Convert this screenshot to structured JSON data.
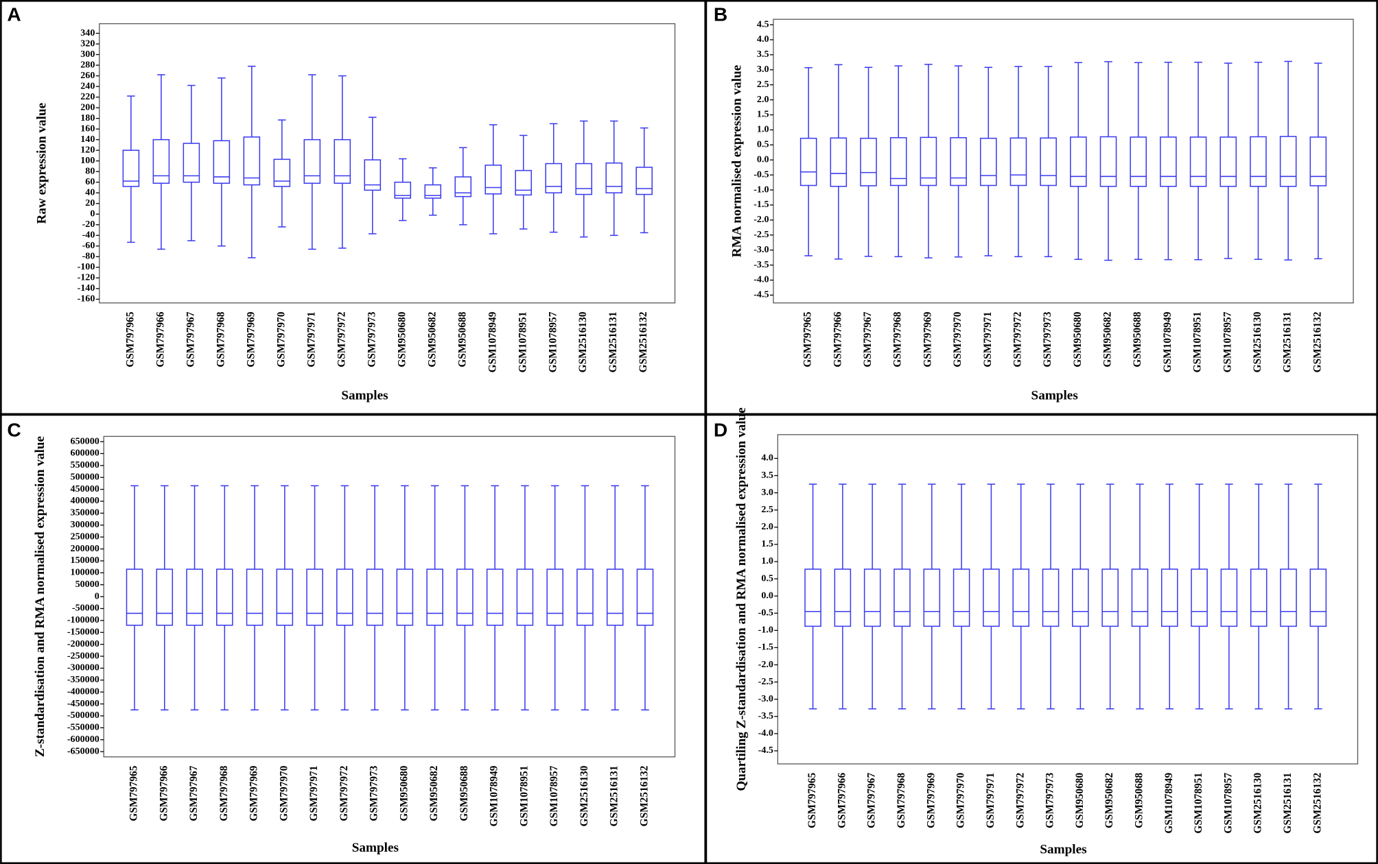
{
  "chart_data": [
    {
      "type": "box",
      "panel": "A",
      "ylabel": "Raw expression value",
      "xlabel": "Samples",
      "color": "#3b3bf0",
      "categories": [
        "GSM797965",
        "GSM797966",
        "GSM797967",
        "GSM797968",
        "GSM797969",
        "GSM797970",
        "GSM797971",
        "GSM797972",
        "GSM797973",
        "GSM950680",
        "GSM950682",
        "GSM950688",
        "GSM1078949",
        "GSM1078951",
        "GSM1078957",
        "GSM2516130",
        "GSM2516131",
        "GSM2516132"
      ],
      "min": [
        -53,
        -66,
        -50,
        -60,
        -82,
        -24,
        -66,
        -64,
        -37,
        -12,
        -2,
        -20,
        -37,
        -28,
        -34,
        -43,
        -40,
        -35
      ],
      "q1": [
        52,
        58,
        60,
        58,
        55,
        52,
        58,
        58,
        45,
        30,
        30,
        33,
        38,
        36,
        40,
        37,
        40,
        37
      ],
      "median": [
        62,
        72,
        72,
        70,
        68,
        62,
        72,
        72,
        55,
        35,
        35,
        40,
        50,
        45,
        52,
        48,
        52,
        48
      ],
      "q3": [
        120,
        140,
        133,
        138,
        145,
        103,
        140,
        140,
        102,
        60,
        55,
        70,
        92,
        82,
        95,
        95,
        96,
        88
      ],
      "max": [
        222,
        262,
        242,
        256,
        278,
        177,
        262,
        260,
        182,
        104,
        87,
        125,
        168,
        148,
        170,
        175,
        175,
        162
      ],
      "ylim": [
        -167,
        358
      ],
      "yticks": [
        -160,
        -140,
        -120,
        -100,
        -80,
        -60,
        -40,
        -20,
        0,
        20,
        40,
        60,
        80,
        100,
        120,
        140,
        160,
        180,
        200,
        220,
        240,
        260,
        280,
        300,
        320,
        340
      ]
    },
    {
      "type": "box",
      "panel": "B",
      "ylabel": "RMA normalised expression value",
      "xlabel": "Samples",
      "color": "#3b3bf0",
      "categories": [
        "GSM797965",
        "GSM797966",
        "GSM797967",
        "GSM797968",
        "GSM797969",
        "GSM797970",
        "GSM797971",
        "GSM797972",
        "GSM797973",
        "GSM950680",
        "GSM950682",
        "GSM950688",
        "GSM1078949",
        "GSM1078951",
        "GSM1078957",
        "GSM2516130",
        "GSM2516131",
        "GSM2516132"
      ],
      "min": [
        -3.19,
        -3.3,
        -3.21,
        -3.22,
        -3.26,
        -3.23,
        -3.19,
        -3.22,
        -3.22,
        -3.31,
        -3.34,
        -3.31,
        -3.32,
        -3.32,
        -3.28,
        -3.31,
        -3.33,
        -3.29
      ],
      "q1": [
        -0.85,
        -0.88,
        -0.86,
        -0.85,
        -0.85,
        -0.85,
        -0.85,
        -0.85,
        -0.85,
        -0.88,
        -0.88,
        -0.88,
        -0.88,
        -0.88,
        -0.88,
        -0.88,
        -0.88,
        -0.86
      ],
      "median": [
        -0.4,
        -0.45,
        -0.42,
        -0.62,
        -0.6,
        -0.6,
        -0.52,
        -0.5,
        -0.52,
        -0.55,
        -0.55,
        -0.55,
        -0.55,
        -0.55,
        -0.55,
        -0.55,
        -0.55,
        -0.55
      ],
      "q3": [
        0.72,
        0.73,
        0.72,
        0.74,
        0.75,
        0.74,
        0.72,
        0.73,
        0.73,
        0.76,
        0.77,
        0.76,
        0.76,
        0.76,
        0.76,
        0.77,
        0.78,
        0.76
      ],
      "max": [
        3.07,
        3.17,
        3.08,
        3.13,
        3.18,
        3.13,
        3.08,
        3.11,
        3.11,
        3.24,
        3.27,
        3.24,
        3.25,
        3.25,
        3.22,
        3.25,
        3.28,
        3.22
      ],
      "ylim": [
        -4.76,
        4.68
      ],
      "yticks": [
        {
          "value": -4.5,
          "label": "-4.5"
        },
        {
          "value": -4,
          "label": "-4.0"
        },
        {
          "value": -3.5,
          "label": "-3.5"
        },
        {
          "value": -3,
          "label": "-3.0"
        },
        {
          "value": -2.5,
          "label": "-2.5"
        },
        {
          "value": -2,
          "label": "-2.0"
        },
        {
          "value": -1.5,
          "label": "-1.5"
        },
        {
          "value": -1,
          "label": "-1.0"
        },
        {
          "value": -0.5,
          "label": "-0.5"
        },
        {
          "value": 0,
          "label": "0.0"
        },
        {
          "value": 0.5,
          "label": "0.5"
        },
        {
          "value": 1,
          "label": "1.0"
        },
        {
          "value": 1.5,
          "label": "1.5"
        },
        {
          "value": 2,
          "label": "2.0"
        },
        {
          "value": 2.5,
          "label": "2.5"
        },
        {
          "value": 3,
          "label": "3.0"
        },
        {
          "value": 3.5,
          "label": "3.5"
        },
        {
          "value": 4,
          "label": "4.0"
        },
        {
          "value": 4.5,
          "label": "4.5"
        }
      ]
    },
    {
      "type": "box",
      "panel": "C",
      "ylabel": "Z-standardisation and RMA normalised expression value",
      "xlabel": "Samples",
      "color": "#3b3bf0",
      "categories": [
        "GSM797965",
        "GSM797966",
        "GSM797967",
        "GSM797968",
        "GSM797969",
        "GSM797970",
        "GSM797971",
        "GSM797972",
        "GSM797973",
        "GSM950680",
        "GSM950682",
        "GSM950688",
        "GSM1078949",
        "GSM1078951",
        "GSM1078957",
        "GSM2516130",
        "GSM2516131",
        "GSM2516132"
      ],
      "min": [
        -475000,
        -475000,
        -475000,
        -475000,
        -475000,
        -475000,
        -475000,
        -475000,
        -475000,
        -475000,
        -475000,
        -475000,
        -475000,
        -475000,
        -475000,
        -475000,
        -475000,
        -475000
      ],
      "q1": [
        -120000,
        -120000,
        -120000,
        -120000,
        -120000,
        -120000,
        -120000,
        -120000,
        -120000,
        -120000,
        -120000,
        -120000,
        -120000,
        -120000,
        -120000,
        -120000,
        -120000,
        -120000
      ],
      "median": [
        -70000,
        -70000,
        -70000,
        -70000,
        -70000,
        -70000,
        -70000,
        -70000,
        -70000,
        -70000,
        -70000,
        -70000,
        -70000,
        -70000,
        -70000,
        -70000,
        -70000,
        -70000
      ],
      "q3": [
        115000,
        115000,
        115000,
        115000,
        115000,
        115000,
        115000,
        115000,
        115000,
        115000,
        115000,
        115000,
        115000,
        115000,
        115000,
        115000,
        115000,
        115000
      ],
      "max": [
        465000,
        465000,
        465000,
        465000,
        465000,
        465000,
        465000,
        465000,
        465000,
        465000,
        465000,
        465000,
        465000,
        465000,
        465000,
        465000,
        465000,
        465000
      ],
      "ylim": [
        -672000,
        672000
      ],
      "yticks": [
        -650000,
        -600000,
        -550000,
        -500000,
        -450000,
        -400000,
        -350000,
        -300000,
        -250000,
        -200000,
        -150000,
        -100000,
        -50000,
        0,
        50000,
        100000,
        150000,
        200000,
        250000,
        300000,
        350000,
        400000,
        450000,
        500000,
        550000,
        600000,
        650000
      ]
    },
    {
      "type": "box",
      "panel": "D",
      "ylabel": "Quartiling Z-standardisation and RMA normalised expression value",
      "xlabel": "Samples",
      "color": "#3b3bf0",
      "categories": [
        "GSM797965",
        "GSM797966",
        "GSM797967",
        "GSM797968",
        "GSM797969",
        "GSM797970",
        "GSM797971",
        "GSM797972",
        "GSM797973",
        "GSM950680",
        "GSM950682",
        "GSM950688",
        "GSM1078949",
        "GSM1078951",
        "GSM1078957",
        "GSM2516130",
        "GSM2516131",
        "GSM2516132"
      ],
      "min": [
        -3.28,
        -3.28,
        -3.28,
        -3.28,
        -3.28,
        -3.28,
        -3.28,
        -3.28,
        -3.28,
        -3.28,
        -3.28,
        -3.28,
        -3.28,
        -3.28,
        -3.28,
        -3.28,
        -3.28,
        -3.28
      ],
      "q1": [
        -0.88,
        -0.88,
        -0.88,
        -0.88,
        -0.88,
        -0.88,
        -0.88,
        -0.88,
        -0.88,
        -0.88,
        -0.88,
        -0.88,
        -0.88,
        -0.88,
        -0.88,
        -0.88,
        -0.88,
        -0.88
      ],
      "median": [
        -0.45,
        -0.45,
        -0.45,
        -0.45,
        -0.45,
        -0.45,
        -0.45,
        -0.45,
        -0.45,
        -0.45,
        -0.45,
        -0.45,
        -0.45,
        -0.45,
        -0.45,
        -0.45,
        -0.45,
        -0.45
      ],
      "q3": [
        0.78,
        0.78,
        0.78,
        0.78,
        0.78,
        0.78,
        0.78,
        0.78,
        0.78,
        0.78,
        0.78,
        0.78,
        0.78,
        0.78,
        0.78,
        0.78,
        0.78,
        0.78
      ],
      "max": [
        3.25,
        3.25,
        3.25,
        3.25,
        3.25,
        3.25,
        3.25,
        3.25,
        3.25,
        3.25,
        3.25,
        3.25,
        3.25,
        3.25,
        3.25,
        3.25,
        3.25,
        3.25
      ],
      "ylim": [
        -4.88,
        4.69
      ],
      "yticks": [
        {
          "value": -4.5,
          "label": "-4.5"
        },
        {
          "value": -4,
          "label": "-4.0"
        },
        {
          "value": -3.5,
          "label": "-3.5"
        },
        {
          "value": -3,
          "label": "-3.0"
        },
        {
          "value": -2.5,
          "label": "-2.5"
        },
        {
          "value": -2,
          "label": "-2.0"
        },
        {
          "value": -1.5,
          "label": "-1.5"
        },
        {
          "value": -1,
          "label": "-1.0"
        },
        {
          "value": -0.5,
          "label": "-0.5"
        },
        {
          "value": 0,
          "label": "0.0"
        },
        {
          "value": 0.5,
          "label": "0.5"
        },
        {
          "value": 1,
          "label": "1.0"
        },
        {
          "value": 1.5,
          "label": "1.5"
        },
        {
          "value": 2,
          "label": "2.0"
        },
        {
          "value": 2.5,
          "label": "2.5"
        },
        {
          "value": 3,
          "label": "3.0"
        },
        {
          "value": 3.5,
          "label": "3.5"
        },
        {
          "value": 4,
          "label": "4.0"
        }
      ]
    }
  ]
}
